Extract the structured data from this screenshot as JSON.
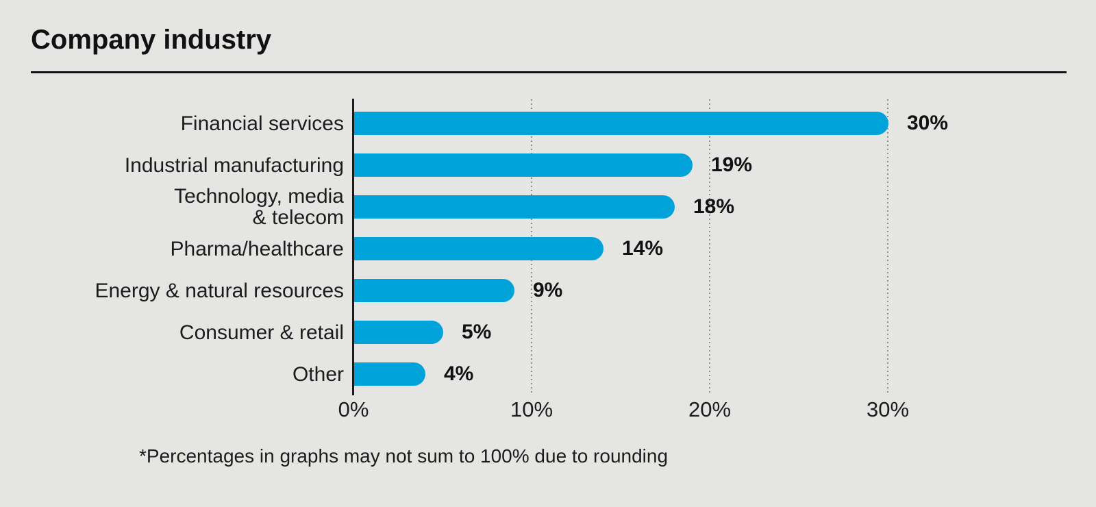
{
  "header": {
    "title": "Company industry"
  },
  "chart_data": {
    "type": "bar",
    "orientation": "horizontal",
    "title": "Company industry",
    "categories": [
      "Financial services",
      "Industrial manufacturing",
      "Technology, media & telecom",
      "Pharma/healthcare",
      "Energy & natural resources",
      "Consumer & retail",
      "Other"
    ],
    "category_label_lines": [
      [
        "Financial services"
      ],
      [
        "Industrial manufacturing"
      ],
      [
        "Technology, media",
        "& telecom"
      ],
      [
        "Pharma/healthcare"
      ],
      [
        "Energy & natural resources"
      ],
      [
        "Consumer & retail"
      ],
      [
        "Other"
      ]
    ],
    "values": [
      30,
      19,
      18,
      14,
      9,
      5,
      4
    ],
    "value_labels": [
      "30%",
      "19%",
      "18%",
      "14%",
      "9%",
      "5%",
      "4%"
    ],
    "xlabel": "",
    "ylabel": "",
    "x_ticks": [
      0,
      10,
      20,
      30
    ],
    "x_tick_labels": [
      "0%",
      "10%",
      "20%",
      "30%"
    ],
    "xlim": [
      0,
      40
    ],
    "grid": "vertical dotted lines at 10%, 20%, 30%",
    "legend": "none",
    "bar_color": "#00a2da"
  },
  "footnote": {
    "text": "*Percentages in graphs may not sum to 100% due to rounding"
  },
  "colors": {
    "background": "#e5e5e3",
    "bar": "#00a2da",
    "text": "#1c1c1c",
    "axis": "#1a1a1a",
    "gridline": "#8f8f8d"
  }
}
